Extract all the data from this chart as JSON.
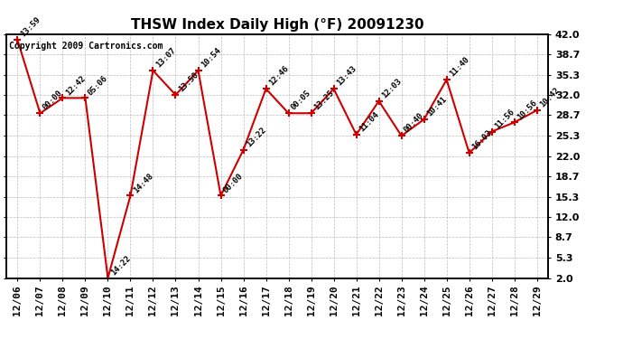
{
  "title": "THSW Index Daily High (°F) 20091230",
  "copyright": "Copyright 2009 Cartronics.com",
  "dates": [
    "12/06",
    "12/07",
    "12/08",
    "12/09",
    "12/10",
    "12/11",
    "12/12",
    "12/13",
    "12/14",
    "12/15",
    "12/16",
    "12/17",
    "12/18",
    "12/19",
    "12/20",
    "12/21",
    "12/22",
    "12/23",
    "12/24",
    "12/25",
    "12/26",
    "12/27",
    "12/28",
    "12/29"
  ],
  "values": [
    41.0,
    29.0,
    31.5,
    31.5,
    2.0,
    15.5,
    36.0,
    32.0,
    36.0,
    15.5,
    23.0,
    33.0,
    29.0,
    29.0,
    33.0,
    25.5,
    31.0,
    25.3,
    28.0,
    34.5,
    22.5,
    26.0,
    27.5,
    29.5
  ],
  "annotations": [
    "13:59",
    "00:00",
    "12:42",
    "05:06",
    "14:22",
    "14:48",
    "13:07",
    "13:50",
    "10:54",
    "00:00",
    "13:22",
    "12:46",
    "00:05",
    "13:25",
    "13:43",
    "11:04",
    "12:03",
    "00:40",
    "10:41",
    "11:40",
    "16:03",
    "11:56",
    "10:56",
    "10:42"
  ],
  "line_color": "#cc0000",
  "marker_color": "#cc0000",
  "background_color": "#ffffff",
  "plot_bg_color": "#ffffff",
  "grid_color": "#bbbbbb",
  "yticks": [
    2.0,
    5.3,
    8.7,
    12.0,
    15.3,
    18.7,
    22.0,
    25.3,
    28.7,
    32.0,
    35.3,
    38.7,
    42.0
  ],
  "ylim": [
    2.0,
    42.0
  ],
  "title_fontsize": 11,
  "annotation_fontsize": 6.5,
  "copyright_fontsize": 7,
  "tick_labelsize": 8
}
